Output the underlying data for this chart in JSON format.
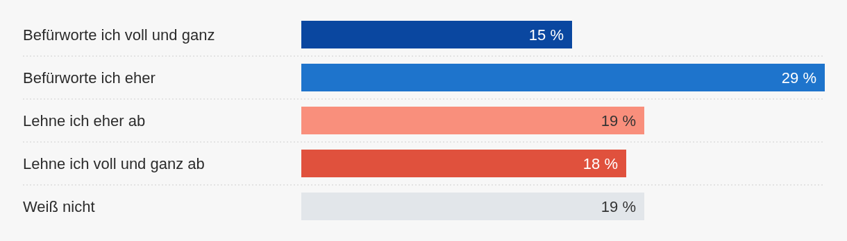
{
  "chart_data": {
    "type": "bar",
    "orientation": "horizontal",
    "categories": [
      "Befürworte ich voll und ganz",
      "Befürworte ich eher",
      "Lehne ich eher ab",
      "Lehne ich voll und ganz ab",
      "Weiß nicht"
    ],
    "values": [
      15,
      29,
      19,
      18,
      19
    ],
    "colors": [
      "#0a47a0",
      "#1e74cc",
      "#f98f7c",
      "#e0513d",
      "#e2e6ea"
    ],
    "value_labels": [
      "15 %",
      "29 %",
      "19 %",
      "18 %",
      "19 %"
    ],
    "grid": "y"
  }
}
